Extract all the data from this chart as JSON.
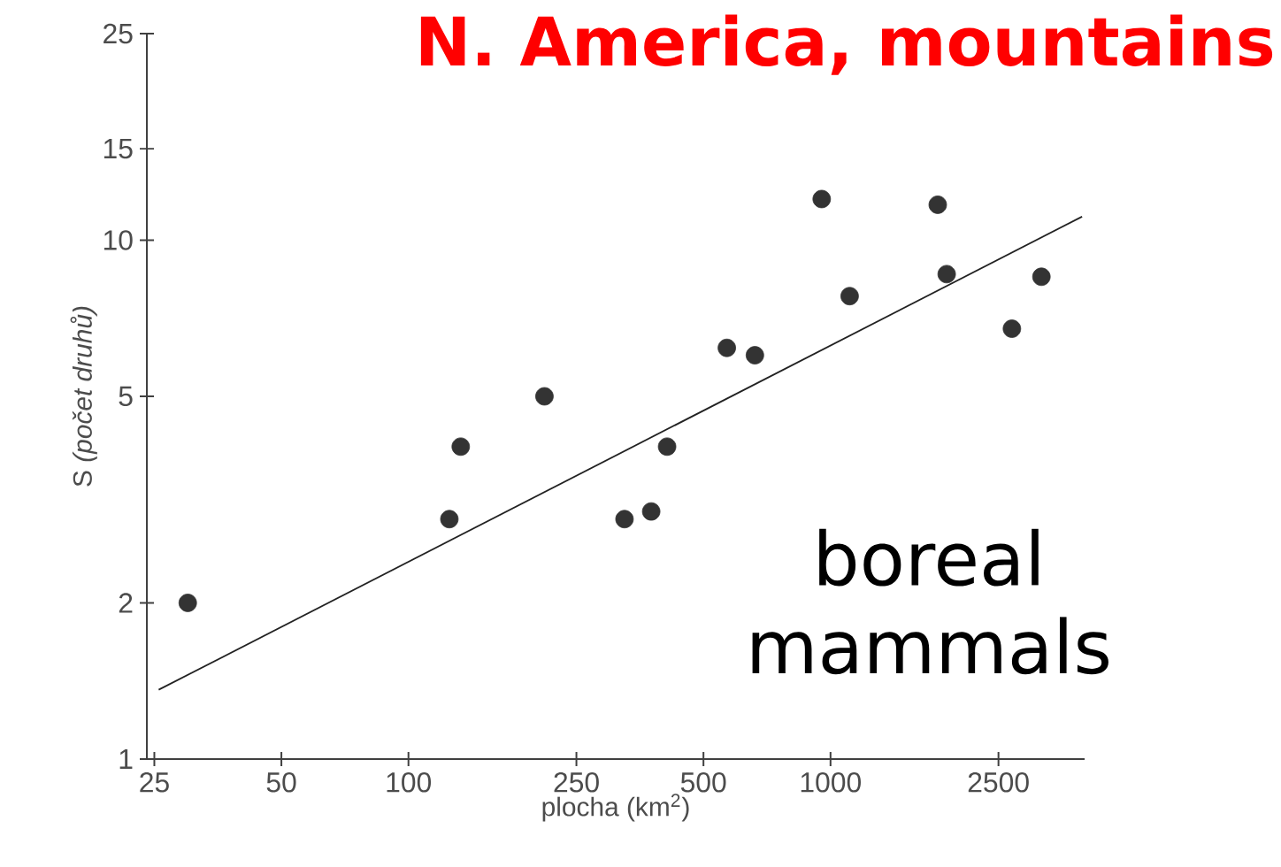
{
  "chart_data": {
    "type": "scatter",
    "title": "N. America, mountains",
    "xlabel": "plocha (km$^{2}$)",
    "ylabel": "S *(počet druhů)*",
    "annotations": [
      "boreal mammals"
    ],
    "log": "xy",
    "xlim": [
      24,
      4000
    ],
    "ylim": [
      1,
      25
    ],
    "xticks": [
      25,
      50,
      100,
      250,
      500,
      1000,
      2500
    ],
    "yticks": [
      1,
      2,
      5,
      10,
      15,
      25
    ],
    "grid": false,
    "series": [
      {
        "marker": "circle",
        "color": "#333333",
        "x": [
          30,
          125,
          133,
          210,
          325,
          376,
          410,
          568,
          662,
          953,
          1110,
          1795,
          1885,
          2690,
          3160
        ],
        "values": [
          2.0,
          2.9,
          4.0,
          5.0,
          2.9,
          3.0,
          4.0,
          6.2,
          6.0,
          12.0,
          7.8,
          11.7,
          8.6,
          6.75,
          8.5
        ]
      },
      {
        "type": "line",
        "marker": "none",
        "color": "#222222",
        "x": [
          25.6,
          3945
        ],
        "values": [
          1.36,
          11.1
        ]
      }
    ]
  }
}
